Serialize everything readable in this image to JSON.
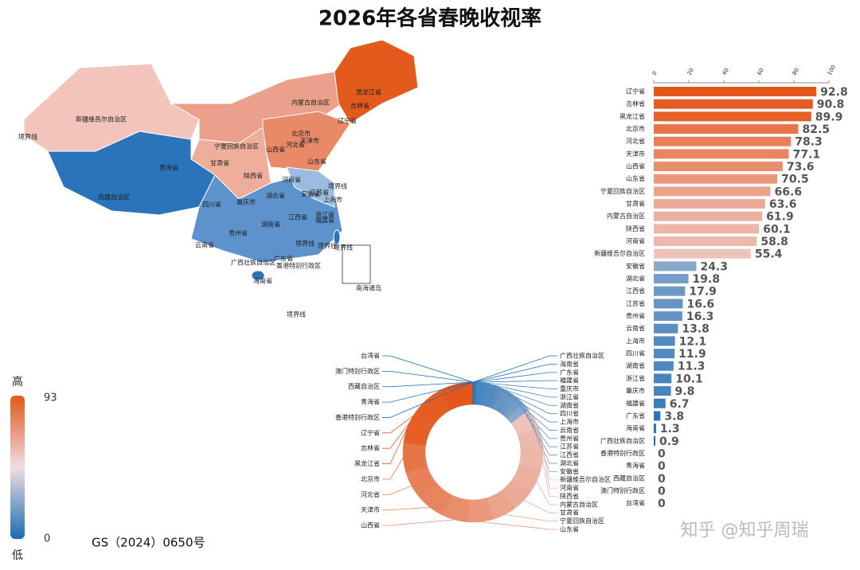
{
  "title": "2026年各省春晚收视率",
  "chart_data": {
    "type": "bar",
    "orientation": "horizontal",
    "categories": [
      "辽宁省",
      "吉林省",
      "黑龙江省",
      "北京市",
      "河北省",
      "天津市",
      "山西省",
      "山东省",
      "宁夏回族自治区",
      "甘肃省",
      "内蒙古自治区",
      "陕西省",
      "河南省",
      "新疆维吾尔自治区",
      "安徽省",
      "湖北省",
      "江西省",
      "江苏省",
      "贵州省",
      "云南省",
      "上海市",
      "四川省",
      "湖南省",
      "浙江省",
      "重庆市",
      "福建省",
      "广东省",
      "海南省",
      "广西壮族自治区",
      "香港特别行政区",
      "青海省",
      "西藏自治区",
      "澳门特别行政区",
      "台湾省"
    ],
    "values": [
      92.8,
      90.8,
      89.9,
      82.5,
      78.3,
      77.1,
      73.6,
      70.5,
      66.6,
      63.6,
      61.9,
      60.1,
      58.8,
      55.4,
      24.3,
      19.8,
      17.9,
      16.6,
      16.3,
      13.8,
      12.1,
      11.9,
      11.3,
      10.1,
      9.8,
      6.7,
      3.8,
      1.3,
      0.9,
      0,
      0,
      0,
      0,
      0
    ],
    "xlim": [
      0,
      100
    ],
    "xticks": [
      0,
      20,
      40,
      60,
      80,
      100
    ],
    "color_scale": [
      "#1a6db4",
      "#f0dde2",
      "#e4561a"
    ]
  },
  "donut": {
    "type": "donut"
  },
  "legend": {
    "high_label": "高",
    "low_label": "低",
    "ticks": [
      0,
      93
    ]
  },
  "map": {
    "labels": [
      "新疆维吾尔自治区",
      "内蒙古自治区",
      "黑龙江省",
      "吉林省",
      "辽宁省",
      "北京市",
      "天津市",
      "河北省",
      "山西省",
      "山东省",
      "宁夏回族自治区",
      "甘肃省",
      "青海省",
      "西藏自治区",
      "陕西省",
      "河南省",
      "四川省",
      "重庆市",
      "湖北省",
      "安徽省",
      "江苏省",
      "上海市",
      "浙江省",
      "湖南省",
      "江西省",
      "福建省",
      "贵州省",
      "云南省",
      "广西壮族自治区",
      "广东省",
      "香港特别行政区",
      "海南省",
      "南海诸岛",
      "境界线",
      "境界线",
      "境界线",
      "境界线",
      "境界线",
      "境界线"
    ],
    "approval": "GS（2024）0650号"
  },
  "watermark": "知乎 @知乎周瑞"
}
